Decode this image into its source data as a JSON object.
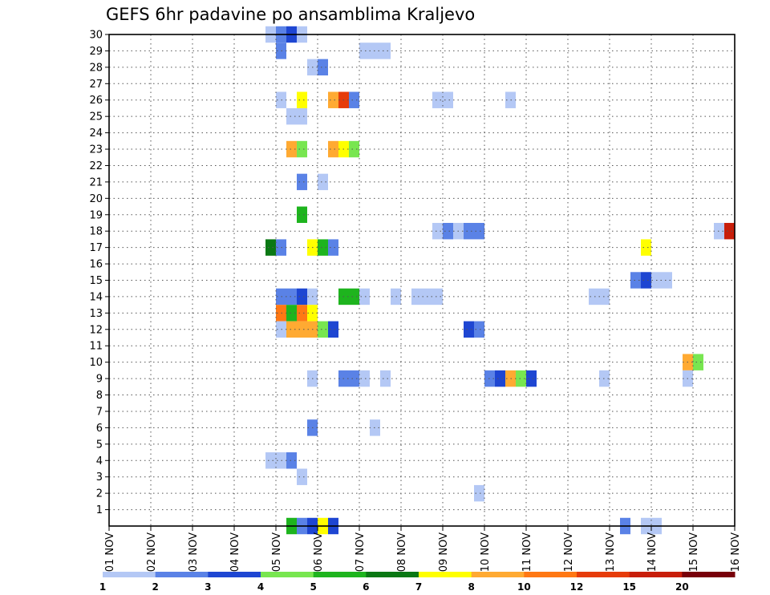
{
  "chart_data": {
    "type": "heatmap",
    "title": "GEFS 6hr padavine po ansamblima Kraljevo",
    "xlabel": "",
    "ylabel": "",
    "x_ticks": [
      "01 NOV",
      "02 NOV",
      "03 NOV",
      "04 NOV",
      "05 NOV",
      "06 NOV",
      "07 NOV",
      "08 NOV",
      "09 NOV",
      "10 NOV",
      "11 NOV",
      "12 NOV",
      "13 NOV",
      "14 NOV",
      "15 NOV",
      "16 NOV"
    ],
    "y_ticks": [
      "1",
      "2",
      "3",
      "4",
      "5",
      "6",
      "7",
      "8",
      "9",
      "10",
      "11",
      "12",
      "13",
      "14",
      "15",
      "16",
      "17",
      "18",
      "19",
      "20",
      "21",
      "22",
      "23",
      "24",
      "25",
      "26",
      "27",
      "28",
      "29",
      "30"
    ],
    "xlim": [
      0,
      60
    ],
    "ylim": [
      0,
      30
    ],
    "x_units": "6-hour steps from 01 NOV 00Z",
    "grid": true,
    "colorbar": {
      "labels": [
        "1",
        "2",
        "3",
        "4",
        "5",
        "6",
        "7",
        "8",
        "10",
        "12",
        "15",
        "20"
      ],
      "colors": [
        "#b4c8f5",
        "#5a82e6",
        "#1e46d2",
        "#78e650",
        "#1eb41e",
        "#0a7814",
        "#ffff00",
        "#ffaa32",
        "#ff7814",
        "#e63c0a",
        "#c81e0a",
        "#78000a"
      ]
    },
    "cells": [
      {
        "member": 30,
        "step": 16,
        "level": 0
      },
      {
        "member": 30,
        "step": 17,
        "level": 1
      },
      {
        "member": 30,
        "step": 18,
        "level": 2
      },
      {
        "member": 30,
        "step": 19,
        "level": 0
      },
      {
        "member": 29,
        "step": 17,
        "level": 1
      },
      {
        "member": 29,
        "step": 25,
        "level": 0
      },
      {
        "member": 29,
        "step": 26,
        "level": 0
      },
      {
        "member": 29,
        "step": 27,
        "level": 0
      },
      {
        "member": 28,
        "step": 20,
        "level": 0
      },
      {
        "member": 28,
        "step": 21,
        "level": 1
      },
      {
        "member": 26,
        "step": 17,
        "level": 0
      },
      {
        "member": 26,
        "step": 19,
        "level": 6
      },
      {
        "member": 26,
        "step": 22,
        "level": 7
      },
      {
        "member": 26,
        "step": 23,
        "level": 9
      },
      {
        "member": 26,
        "step": 24,
        "level": 1
      },
      {
        "member": 26,
        "step": 32,
        "level": 0
      },
      {
        "member": 26,
        "step": 33,
        "level": 0
      },
      {
        "member": 26,
        "step": 39,
        "level": 0
      },
      {
        "member": 25,
        "step": 18,
        "level": 0
      },
      {
        "member": 25,
        "step": 19,
        "level": 0
      },
      {
        "member": 23,
        "step": 18,
        "level": 7
      },
      {
        "member": 23,
        "step": 19,
        "level": 3
      },
      {
        "member": 23,
        "step": 22,
        "level": 7
      },
      {
        "member": 23,
        "step": 23,
        "level": 6
      },
      {
        "member": 23,
        "step": 24,
        "level": 3
      },
      {
        "member": 21,
        "step": 19,
        "level": 1
      },
      {
        "member": 21,
        "step": 21,
        "level": 0
      },
      {
        "member": 19,
        "step": 19,
        "level": 4
      },
      {
        "member": 18,
        "step": 32,
        "level": 0
      },
      {
        "member": 18,
        "step": 33,
        "level": 1
      },
      {
        "member": 18,
        "step": 34,
        "level": 0
      },
      {
        "member": 18,
        "step": 35,
        "level": 1
      },
      {
        "member": 18,
        "step": 36,
        "level": 1
      },
      {
        "member": 18,
        "step": 59,
        "level": 0
      },
      {
        "member": 18,
        "step": 60,
        "level": 10
      },
      {
        "member": 17,
        "step": 16,
        "level": 5
      },
      {
        "member": 17,
        "step": 17,
        "level": 1
      },
      {
        "member": 17,
        "step": 20,
        "level": 6
      },
      {
        "member": 17,
        "step": 21,
        "level": 4
      },
      {
        "member": 17,
        "step": 22,
        "level": 1
      },
      {
        "member": 17,
        "step": 52,
        "level": 6
      },
      {
        "member": 15,
        "step": 51,
        "level": 1
      },
      {
        "member": 15,
        "step": 52,
        "level": 2
      },
      {
        "member": 15,
        "step": 53,
        "level": 0
      },
      {
        "member": 15,
        "step": 54,
        "level": 0
      },
      {
        "member": 14,
        "step": 17,
        "level": 1
      },
      {
        "member": 14,
        "step": 18,
        "level": 1
      },
      {
        "member": 14,
        "step": 19,
        "level": 2
      },
      {
        "member": 14,
        "step": 20,
        "level": 0
      },
      {
        "member": 14,
        "step": 23,
        "level": 4
      },
      {
        "member": 14,
        "step": 24,
        "level": 4
      },
      {
        "member": 14,
        "step": 25,
        "level": 0
      },
      {
        "member": 14,
        "step": 28,
        "level": 0
      },
      {
        "member": 14,
        "step": 30,
        "level": 0
      },
      {
        "member": 14,
        "step": 31,
        "level": 0
      },
      {
        "member": 14,
        "step": 32,
        "level": 0
      },
      {
        "member": 14,
        "step": 47,
        "level": 0
      },
      {
        "member": 14,
        "step": 48,
        "level": 0
      },
      {
        "member": 13,
        "step": 17,
        "level": 8
      },
      {
        "member": 13,
        "step": 18,
        "level": 4
      },
      {
        "member": 13,
        "step": 19,
        "level": 8
      },
      {
        "member": 13,
        "step": 20,
        "level": 6
      },
      {
        "member": 12,
        "step": 17,
        "level": 0
      },
      {
        "member": 12,
        "step": 18,
        "level": 7
      },
      {
        "member": 12,
        "step": 19,
        "level": 7
      },
      {
        "member": 12,
        "step": 20,
        "level": 7
      },
      {
        "member": 12,
        "step": 21,
        "level": 3
      },
      {
        "member": 12,
        "step": 22,
        "level": 2
      },
      {
        "member": 12,
        "step": 35,
        "level": 2
      },
      {
        "member": 12,
        "step": 36,
        "level": 1
      },
      {
        "member": 10,
        "step": 56,
        "level": 7
      },
      {
        "member": 10,
        "step": 57,
        "level": 3
      },
      {
        "member": 9,
        "step": 20,
        "level": 0
      },
      {
        "member": 9,
        "step": 23,
        "level": 1
      },
      {
        "member": 9,
        "step": 24,
        "level": 1
      },
      {
        "member": 9,
        "step": 25,
        "level": 0
      },
      {
        "member": 9,
        "step": 27,
        "level": 0
      },
      {
        "member": 9,
        "step": 37,
        "level": 1
      },
      {
        "member": 9,
        "step": 38,
        "level": 2
      },
      {
        "member": 9,
        "step": 39,
        "level": 7
      },
      {
        "member": 9,
        "step": 40,
        "level": 3
      },
      {
        "member": 9,
        "step": 41,
        "level": 2
      },
      {
        "member": 9,
        "step": 48,
        "level": 0
      },
      {
        "member": 9,
        "step": 56,
        "level": 0
      },
      {
        "member": 6,
        "step": 20,
        "level": 1
      },
      {
        "member": 6,
        "step": 26,
        "level": 0
      },
      {
        "member": 4,
        "step": 16,
        "level": 0
      },
      {
        "member": 4,
        "step": 17,
        "level": 0
      },
      {
        "member": 4,
        "step": 18,
        "level": 1
      },
      {
        "member": 3,
        "step": 19,
        "level": 0
      },
      {
        "member": 2,
        "step": 36,
        "level": 0
      },
      {
        "member": 0,
        "step": 18,
        "level": 4
      },
      {
        "member": 0,
        "step": 19,
        "level": 1
      },
      {
        "member": 0,
        "step": 20,
        "level": 2
      },
      {
        "member": 0,
        "step": 21,
        "level": 6
      },
      {
        "member": 0,
        "step": 22,
        "level": 2
      },
      {
        "member": 0,
        "step": 50,
        "level": 1
      },
      {
        "member": 0,
        "step": 52,
        "level": 0
      },
      {
        "member": 0,
        "step": 53,
        "level": 0
      }
    ]
  }
}
